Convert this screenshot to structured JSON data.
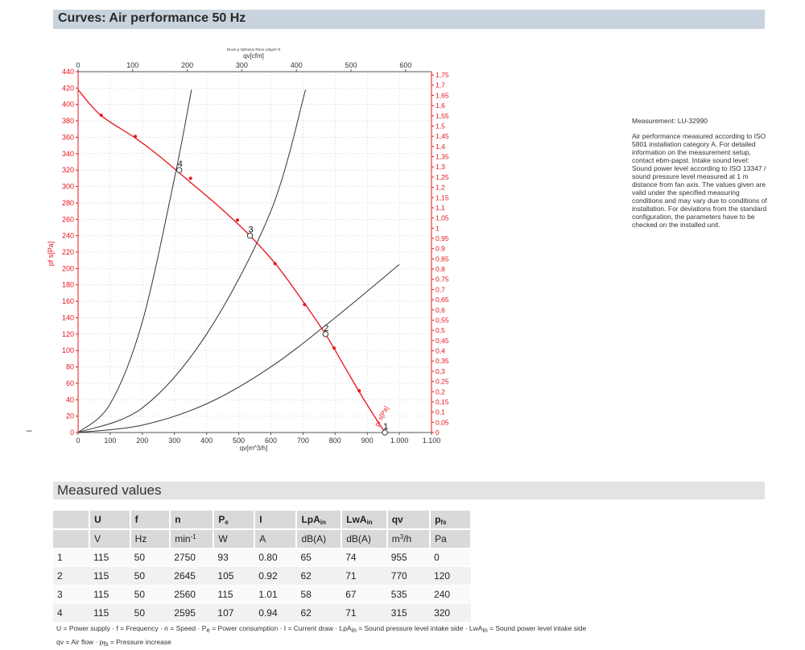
{
  "header": {
    "title": "Curves: Air performance 50 Hz"
  },
  "measured": {
    "title": "Measured values",
    "columns": [
      {
        "sym": "U",
        "sub": "",
        "unit": "V",
        "unit_sup": ""
      },
      {
        "sym": "f",
        "sub": "",
        "unit": "Hz",
        "unit_sup": ""
      },
      {
        "sym": "n",
        "sub": "",
        "unit": "min",
        "unit_sup": "-1"
      },
      {
        "sym": "P",
        "sub": "e",
        "unit": "W",
        "unit_sup": ""
      },
      {
        "sym": "I",
        "sub": "",
        "unit": "A",
        "unit_sup": ""
      },
      {
        "sym": "LpA",
        "sub": "in",
        "unit": "dB(A)",
        "unit_sup": ""
      },
      {
        "sym": "LwA",
        "sub": "in",
        "unit": "dB(A)",
        "unit_sup": ""
      },
      {
        "sym": "qv",
        "sub": "",
        "unit": "m",
        "unit_sup": "3",
        "unit_suffix": "/h"
      },
      {
        "sym": "p",
        "sub": "fs",
        "unit": "Pa",
        "unit_sup": ""
      }
    ],
    "rows": [
      [
        "1",
        "115",
        "50",
        "2750",
        "93",
        "0.80",
        "65",
        "74",
        "955",
        "0"
      ],
      [
        "2",
        "115",
        "50",
        "2645",
        "105",
        "0.92",
        "62",
        "71",
        "770",
        "120"
      ],
      [
        "3",
        "115",
        "50",
        "2560",
        "115",
        "1.01",
        "58",
        "67",
        "535",
        "240"
      ],
      [
        "4",
        "115",
        "50",
        "2595",
        "107",
        "0.94",
        "62",
        "71",
        "315",
        "320"
      ]
    ],
    "legend_line1": [
      {
        "t": "U = Power supply · f = Frequency · n = Speed · P"
      },
      {
        "sub": "e"
      },
      {
        "t": " = Power consumption · I = Current draw · LpA"
      },
      {
        "sub": "in"
      },
      {
        "t": " = Sound pressure level intake side · LwA"
      },
      {
        "sub": "in"
      },
      {
        "t": " = Sound power level intake side"
      }
    ],
    "legend_line2": [
      {
        "t": "qv = Air flow · p"
      },
      {
        "sub": "fs"
      },
      {
        "t": " = Pressure increase"
      }
    ]
  },
  "info": {
    "measurement": "Measurement: LU-32990",
    "text": "Air performance measured according to ISO 5801 installation category A. For detailed information on the measurement setup, contact ebm-papst. Intake sound level: Sound power level according to ISO 13347 / sound pressure level measured at 1 m distance from fan axis. The values given are valid under the specified measuring conditions and may vary due to conditions of installation. For deviations from the standard configuration, the parameters have to be checked on the installed unit."
  },
  "dash": "–",
  "chart_data": {
    "type": "line",
    "title": "Druck p f@N@ar Rhon U/kg/m^3",
    "xlabel": "qv[m^3/h]",
    "x2label": "qv[cfm]",
    "ylabel": "pf s[Pa]",
    "y2label": "pfs_E[IN H2O]",
    "xlim": [
      0,
      1100
    ],
    "ylim": [
      0,
      440
    ],
    "x2lim": [
      0,
      647.4
    ],
    "y2lim": [
      0,
      1.766
    ],
    "x_ticks": [
      0,
      100,
      200,
      300,
      400,
      500,
      600,
      700,
      800,
      900,
      1000,
      1100
    ],
    "x_tick_labels": [
      "0",
      "100",
      "200",
      "300",
      "400",
      "500",
      "600",
      "700",
      "800",
      "900",
      "1.000",
      "1.100"
    ],
    "y_ticks": [
      0,
      20,
      40,
      60,
      80,
      100,
      120,
      140,
      160,
      180,
      200,
      220,
      240,
      260,
      280,
      300,
      320,
      340,
      360,
      380,
      400,
      420,
      440
    ],
    "x2_ticks": [
      0,
      100,
      200,
      300,
      400,
      500,
      600
    ],
    "y2_ticks": [
      "0",
      "0,05",
      "0,1",
      "0,15",
      "0,2",
      "0,25",
      "0,3",
      "0,35",
      "0,4",
      "0,45",
      "0,5",
      "0,55",
      "0,6",
      "0,65",
      "0,7",
      "0,75",
      "0,8",
      "0,85",
      "0,9",
      "0,95",
      "1",
      "1,05",
      "1,1",
      "1,15",
      "1,2",
      "1,25",
      "1,3",
      "1,35",
      "1,4",
      "1,45",
      "1,5",
      "1,55",
      "1,6",
      "1,65",
      "1,7",
      "1,75"
    ],
    "grid": true,
    "series": [
      {
        "name": "pf s[Pa]",
        "color": "#e8141b",
        "x": [
          0,
          70,
          175,
          250,
          350,
          440,
          535,
          620,
          700,
          770,
          830,
          890,
          955
        ],
        "y": [
          418,
          387,
          360,
          338,
          305,
          275,
          240,
          203,
          160,
          120,
          80,
          40,
          0
        ],
        "markers_x": [
          72,
          178,
          350,
          496,
          613,
          705,
          797,
          875
        ],
        "markers_y": [
          387,
          361,
          310,
          259,
          206,
          156,
          103,
          51
        ]
      },
      {
        "name": "",
        "color": "#333333",
        "x": [
          0,
          100,
          200,
          300,
          353
        ],
        "y": [
          0,
          35,
          135,
          310,
          418
        ]
      },
      {
        "name": "",
        "color": "#333333",
        "x": [
          0,
          200,
          400,
          600,
          708
        ],
        "y": [
          0,
          30,
          120,
          270,
          418
        ]
      },
      {
        "name": "",
        "color": "#333333",
        "x": [
          0,
          200,
          400,
          600,
          800,
          1000
        ],
        "y": [
          0,
          9,
          35,
          80,
          140,
          205
        ]
      }
    ],
    "operating_points": [
      {
        "label": "1",
        "x": 955,
        "y": 0
      },
      {
        "label": "2",
        "x": 770,
        "y": 120
      },
      {
        "label": "3",
        "x": 535,
        "y": 240
      },
      {
        "label": "4",
        "x": 315,
        "y": 320
      }
    ]
  }
}
